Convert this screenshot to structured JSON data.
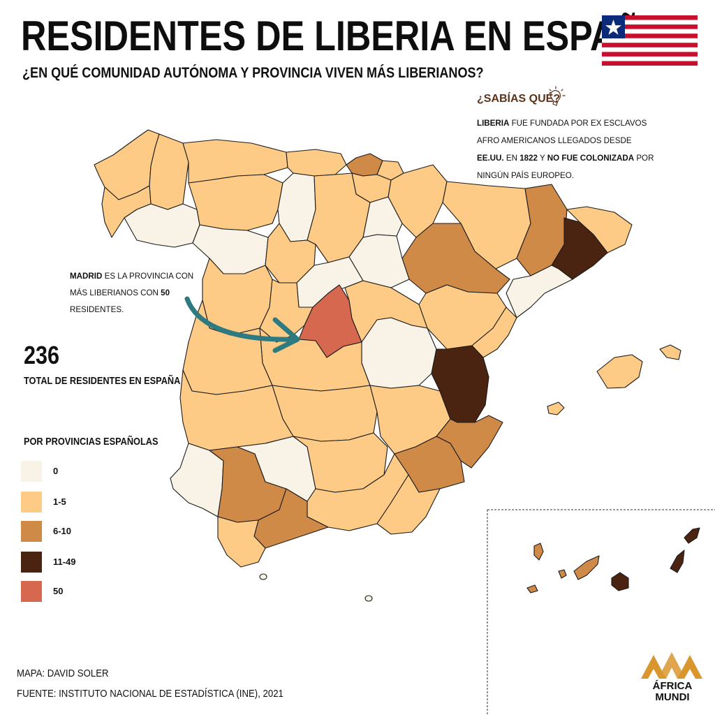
{
  "header": {
    "title": "RESIDENTES DE LIBERIA EN ESPAÑA",
    "subtitle": "¿EN QUÉ COMUNIDAD AUTÓNOMA Y PROVINCIA VIVEN MÁS LIBERIANOS?"
  },
  "flag": {
    "name": "liberia-flag-icon",
    "stripe_red": "#c8102e",
    "canton_blue": "#0b2a7a"
  },
  "fact": {
    "title": "¿SABÍAS QUÉ?",
    "b1": "LIBERIA",
    "t1": " fue fundada por ex esclavos afro americanos llegados desde ",
    "b2": "EE.UU.",
    "t2": " en ",
    "b3": "1822",
    "t3": " y ",
    "b4": "NO FUE COLONIZADA",
    "t4": " por ningún país europeo."
  },
  "madrid_note": {
    "b1": "MADRID",
    "t1": " es la provincia con más liberianos con ",
    "b2": "50",
    "t2": " residentes."
  },
  "summary": {
    "total": "236",
    "total_label": "TOTAL DE RESIDENTES EN ESPAÑA"
  },
  "legend": {
    "title": "POR PROVINCIAS ESPAÑOLAS",
    "items": [
      {
        "label": "0",
        "color": "#f8f3e6"
      },
      {
        "label": "1-5",
        "color": "#fdcb85"
      },
      {
        "label": "6-10",
        "color": "#d08a48"
      },
      {
        "label": "11-49",
        "color": "#4a2410"
      },
      {
        "label": "50",
        "color": "#d6684f"
      }
    ]
  },
  "arrow_color": "#2d7a80",
  "credits": {
    "map": "MAPA: DAVID SOLER",
    "source": "FUENTE: INSTITUTO NACIONAL DE ESTADÍSTICA (INE), 2021"
  },
  "logo": {
    "line1": "ÁFRICA",
    "line2": "MUNDI",
    "color": "#d9962f"
  }
}
